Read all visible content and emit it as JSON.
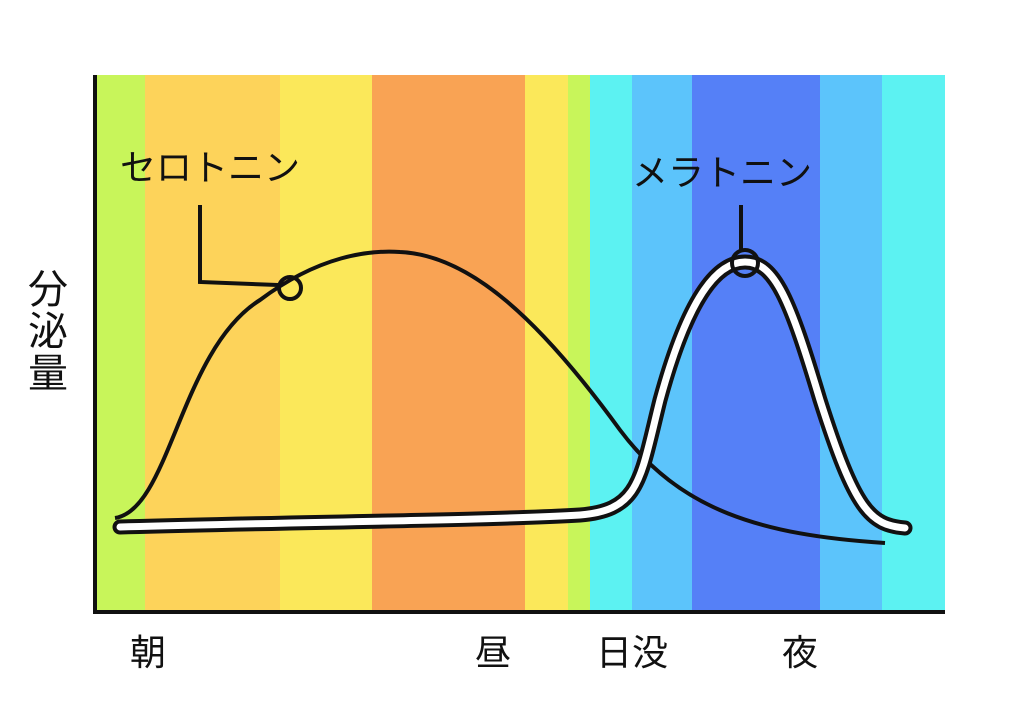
{
  "y_axis_label": "分泌量",
  "curves": [
    {
      "label": "セロトニン"
    },
    {
      "label": "メラトニン"
    }
  ],
  "x_labels": [
    "朝",
    "昼",
    "日没",
    "夜"
  ]
}
